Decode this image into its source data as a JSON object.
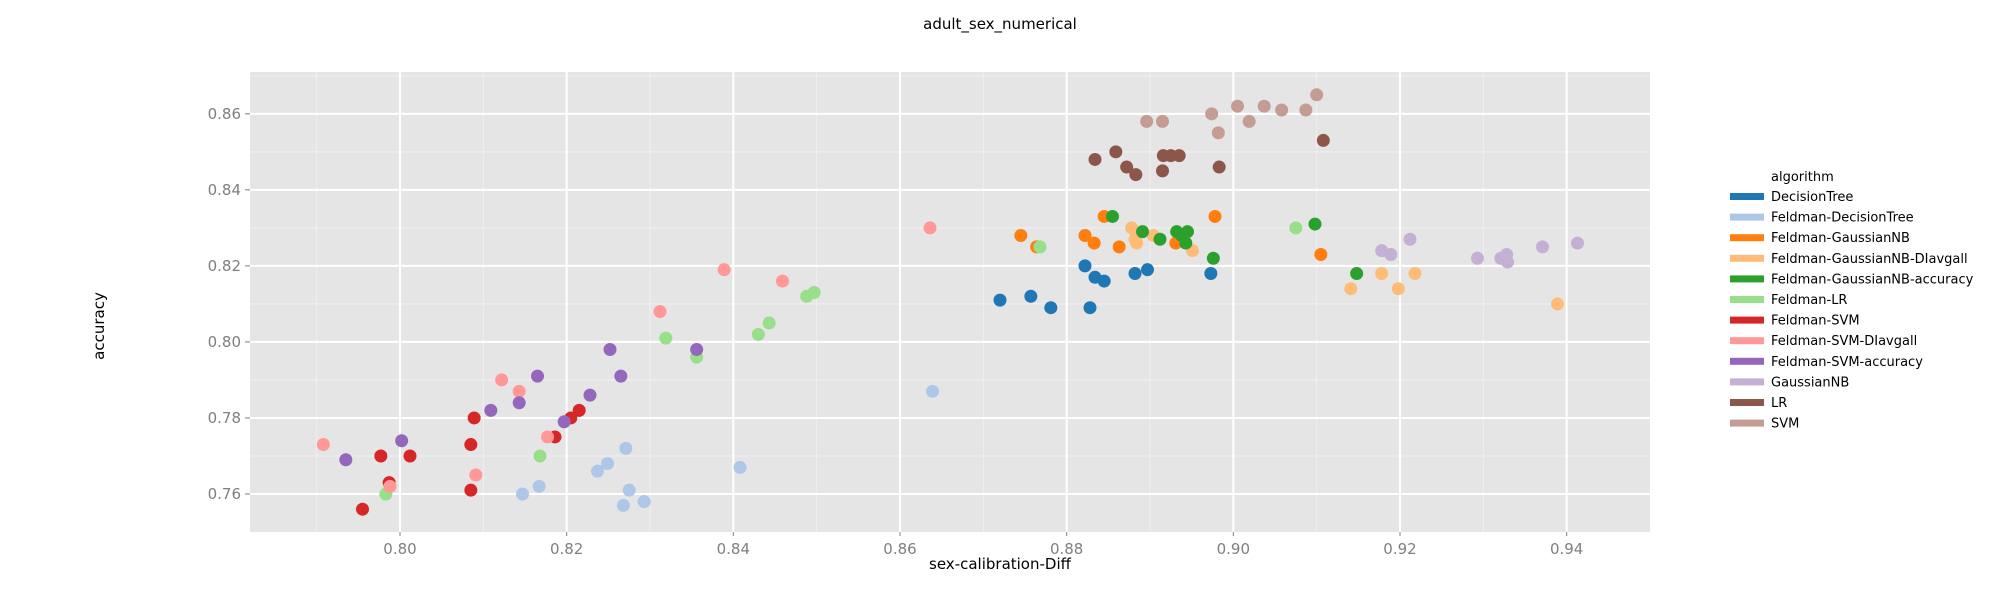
{
  "chart_data": {
    "type": "scatter",
    "title": "adult_sex_numerical",
    "xlabel": "sex-calibration-Diff",
    "ylabel": "accuracy",
    "xlim": [
      0.782,
      0.95
    ],
    "ylim": [
      0.75,
      0.871
    ],
    "x_ticks": [
      0.8,
      0.82,
      0.84,
      0.86,
      0.88,
      0.9,
      0.92,
      0.94
    ],
    "y_ticks": [
      0.76,
      0.78,
      0.8,
      0.82,
      0.84,
      0.86
    ],
    "x_tick_labels": [
      "0.80",
      "0.82",
      "0.84",
      "0.86",
      "0.88",
      "0.90",
      "0.92",
      "0.94"
    ],
    "y_tick_labels": [
      "0.76",
      "0.78",
      "0.80",
      "0.82",
      "0.84",
      "0.86"
    ],
    "grid": true,
    "legend_title": "algorithm",
    "legend_position": "right",
    "series": [
      {
        "name": "DecisionTree",
        "color": "#1f77b4",
        "points": [
          [
            0.872,
            0.811
          ],
          [
            0.8757,
            0.812
          ],
          [
            0.8781,
            0.809
          ],
          [
            0.8822,
            0.82
          ],
          [
            0.8828,
            0.809
          ],
          [
            0.8834,
            0.817
          ],
          [
            0.8845,
            0.816
          ],
          [
            0.8882,
            0.818
          ],
          [
            0.8897,
            0.819
          ],
          [
            0.8973,
            0.818
          ]
        ]
      },
      {
        "name": "Feldman-DecisionTree",
        "color": "#aec7e8",
        "points": [
          [
            0.8147,
            0.76
          ],
          [
            0.8167,
            0.762
          ],
          [
            0.8237,
            0.766
          ],
          [
            0.8249,
            0.768
          ],
          [
            0.8268,
            0.757
          ],
          [
            0.8271,
            0.772
          ],
          [
            0.8275,
            0.761
          ],
          [
            0.8293,
            0.758
          ],
          [
            0.8408,
            0.767
          ],
          [
            0.8639,
            0.787
          ]
        ]
      },
      {
        "name": "Feldman-GaussianNB",
        "color": "#ff7f0e",
        "points": [
          [
            0.8745,
            0.828
          ],
          [
            0.8764,
            0.825
          ],
          [
            0.8822,
            0.828
          ],
          [
            0.8833,
            0.826
          ],
          [
            0.8845,
            0.833
          ],
          [
            0.8863,
            0.825
          ],
          [
            0.8931,
            0.826
          ],
          [
            0.8978,
            0.833
          ],
          [
            0.9105,
            0.823
          ]
        ]
      },
      {
        "name": "Feldman-GaussianNB-DIavgall",
        "color": "#ffbb78",
        "points": [
          [
            0.8878,
            0.83
          ],
          [
            0.8882,
            0.827
          ],
          [
            0.8884,
            0.826
          ],
          [
            0.8904,
            0.828
          ],
          [
            0.8951,
            0.824
          ],
          [
            0.9141,
            0.814
          ],
          [
            0.9178,
            0.818
          ],
          [
            0.9198,
            0.814
          ],
          [
            0.9218,
            0.818
          ],
          [
            0.9389,
            0.81
          ]
        ]
      },
      {
        "name": "Feldman-GaussianNB-accuracy",
        "color": "#2ca02c",
        "points": [
          [
            0.8855,
            0.833
          ],
          [
            0.8891,
            0.829
          ],
          [
            0.8912,
            0.827
          ],
          [
            0.8932,
            0.829
          ],
          [
            0.8938,
            0.828
          ],
          [
            0.8943,
            0.826
          ],
          [
            0.8945,
            0.829
          ],
          [
            0.8976,
            0.822
          ],
          [
            0.9098,
            0.831
          ],
          [
            0.9148,
            0.818
          ]
        ]
      },
      {
        "name": "Feldman-LR",
        "color": "#98df8a",
        "points": [
          [
            0.7983,
            0.76
          ],
          [
            0.8168,
            0.77
          ],
          [
            0.8319,
            0.801
          ],
          [
            0.8356,
            0.796
          ],
          [
            0.843,
            0.802
          ],
          [
            0.8443,
            0.805
          ],
          [
            0.8488,
            0.812
          ],
          [
            0.8497,
            0.813
          ],
          [
            0.8768,
            0.825
          ],
          [
            0.9075,
            0.83
          ]
        ]
      },
      {
        "name": "Feldman-SVM",
        "color": "#d62728",
        "points": [
          [
            0.7955,
            0.756
          ],
          [
            0.7977,
            0.77
          ],
          [
            0.7987,
            0.763
          ],
          [
            0.8012,
            0.77
          ],
          [
            0.8085,
            0.761
          ],
          [
            0.8085,
            0.773
          ],
          [
            0.8089,
            0.78
          ],
          [
            0.8186,
            0.775
          ],
          [
            0.8205,
            0.78
          ],
          [
            0.8215,
            0.782
          ]
        ]
      },
      {
        "name": "Feldman-SVM-DIavgall",
        "color": "#ff9896",
        "points": [
          [
            0.7908,
            0.773
          ],
          [
            0.7988,
            0.762
          ],
          [
            0.8091,
            0.765
          ],
          [
            0.8122,
            0.79
          ],
          [
            0.8143,
            0.787
          ],
          [
            0.8177,
            0.775
          ],
          [
            0.8312,
            0.808
          ],
          [
            0.8389,
            0.819
          ],
          [
            0.8459,
            0.816
          ],
          [
            0.8636,
            0.83
          ]
        ]
      },
      {
        "name": "Feldman-SVM-accuracy",
        "color": "#9467bd",
        "points": [
          [
            0.7935,
            0.769
          ],
          [
            0.8002,
            0.774
          ],
          [
            0.8109,
            0.782
          ],
          [
            0.8143,
            0.784
          ],
          [
            0.8165,
            0.791
          ],
          [
            0.8197,
            0.779
          ],
          [
            0.8228,
            0.786
          ],
          [
            0.8252,
            0.798
          ],
          [
            0.8265,
            0.791
          ],
          [
            0.8356,
            0.798
          ]
        ]
      },
      {
        "name": "GaussianNB",
        "color": "#c5b0d5",
        "points": [
          [
            0.9178,
            0.824
          ],
          [
            0.9189,
            0.823
          ],
          [
            0.9212,
            0.827
          ],
          [
            0.9293,
            0.822
          ],
          [
            0.9321,
            0.822
          ],
          [
            0.9328,
            0.823
          ],
          [
            0.9329,
            0.821
          ],
          [
            0.9371,
            0.825
          ],
          [
            0.9413,
            0.826
          ]
        ]
      },
      {
        "name": "LR",
        "color": "#8c564b",
        "points": [
          [
            0.8834,
            0.848
          ],
          [
            0.8859,
            0.85
          ],
          [
            0.8872,
            0.846
          ],
          [
            0.8883,
            0.844
          ],
          [
            0.8915,
            0.845
          ],
          [
            0.8916,
            0.849
          ],
          [
            0.8925,
            0.849
          ],
          [
            0.8935,
            0.849
          ],
          [
            0.8983,
            0.846
          ],
          [
            0.9108,
            0.853
          ]
        ]
      },
      {
        "name": "SVM",
        "color": "#c49c94",
        "points": [
          [
            0.8896,
            0.858
          ],
          [
            0.8915,
            0.858
          ],
          [
            0.8974,
            0.86
          ],
          [
            0.8982,
            0.855
          ],
          [
            0.9005,
            0.862
          ],
          [
            0.9019,
            0.858
          ],
          [
            0.9037,
            0.862
          ],
          [
            0.9058,
            0.861
          ],
          [
            0.9087,
            0.861
          ],
          [
            0.91,
            0.865
          ]
        ]
      }
    ]
  }
}
